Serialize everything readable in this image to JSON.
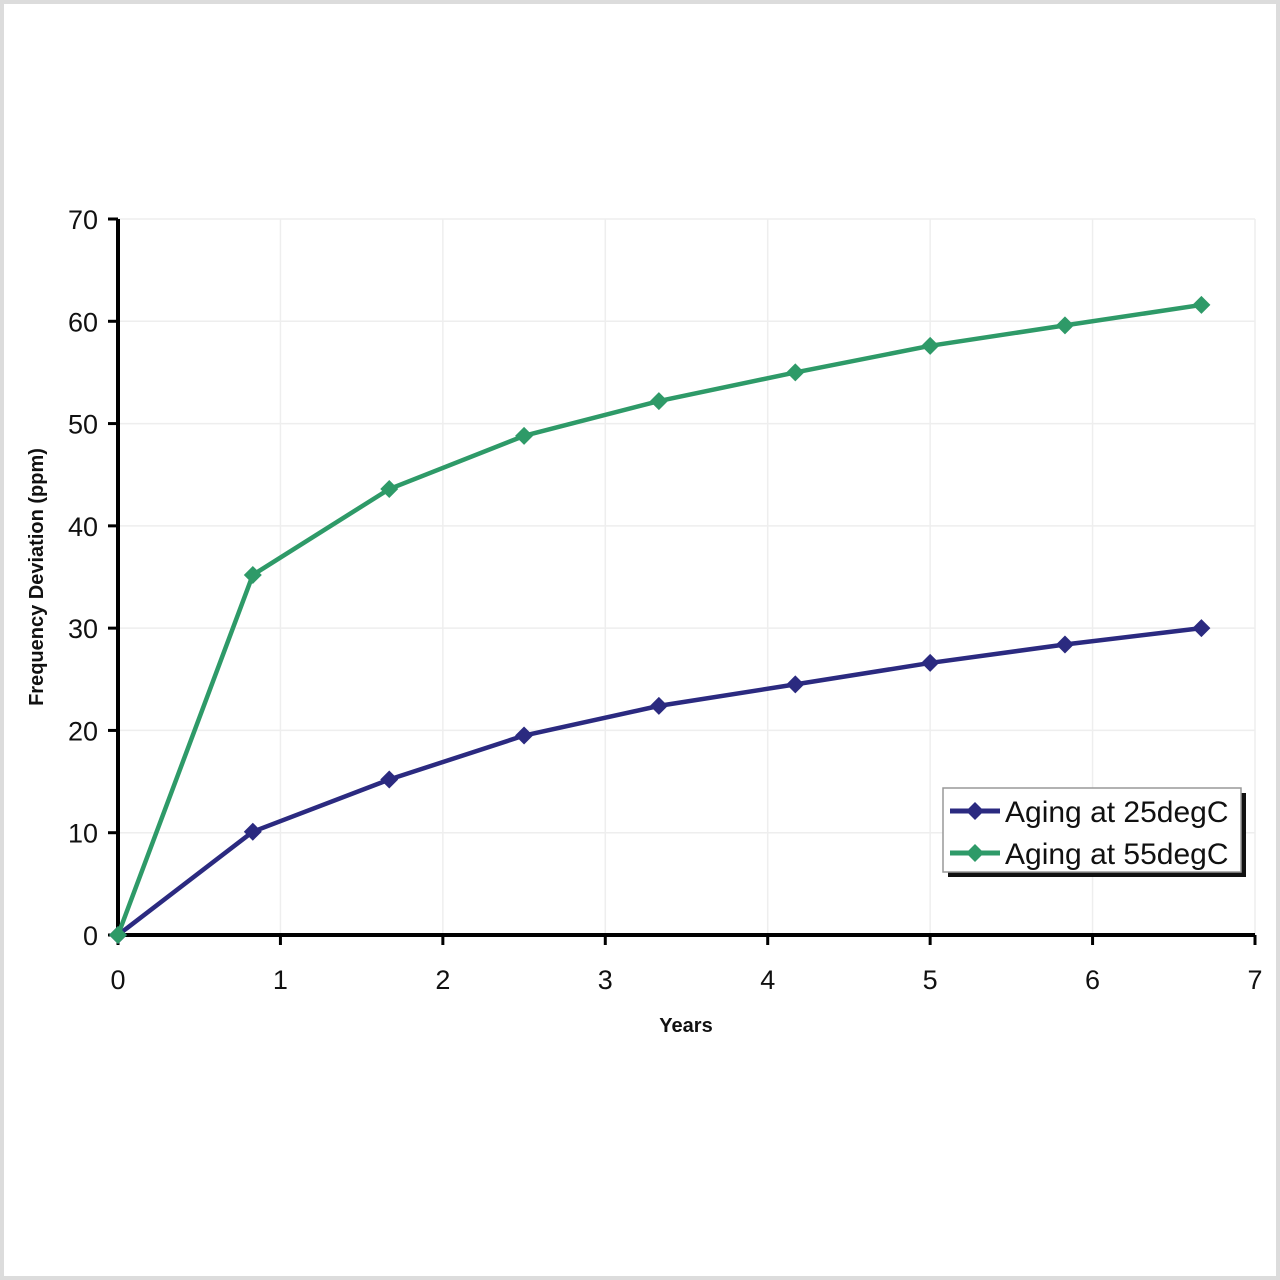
{
  "chart_data": {
    "type": "line",
    "title": "",
    "xlabel": "Years",
    "ylabel": "Frequency Deviation (ppm)",
    "xlim": [
      0,
      7
    ],
    "ylim": [
      0,
      70
    ],
    "xticks": [
      "0",
      "1",
      "2",
      "3",
      "4",
      "5",
      "6",
      "7"
    ],
    "yticks": [
      "0",
      "10",
      "20",
      "30",
      "40",
      "50",
      "60",
      "70"
    ],
    "grid": true,
    "legend_position": "bottom-right",
    "x": [
      0,
      0.83,
      1.67,
      2.5,
      3.33,
      4.17,
      5.0,
      5.83,
      6.67
    ],
    "series": [
      {
        "name": "Aging at 25degC",
        "color": "#2b2a80",
        "marker": "diamond",
        "values": [
          0,
          10.1,
          15.2,
          19.5,
          22.4,
          24.5,
          26.6,
          28.4,
          30.0
        ]
      },
      {
        "name": "Aging at 55degC",
        "color": "#2e9a68",
        "marker": "diamond",
        "values": [
          0,
          35.2,
          43.6,
          48.8,
          52.2,
          55.0,
          57.6,
          59.6,
          61.6
        ]
      }
    ]
  }
}
